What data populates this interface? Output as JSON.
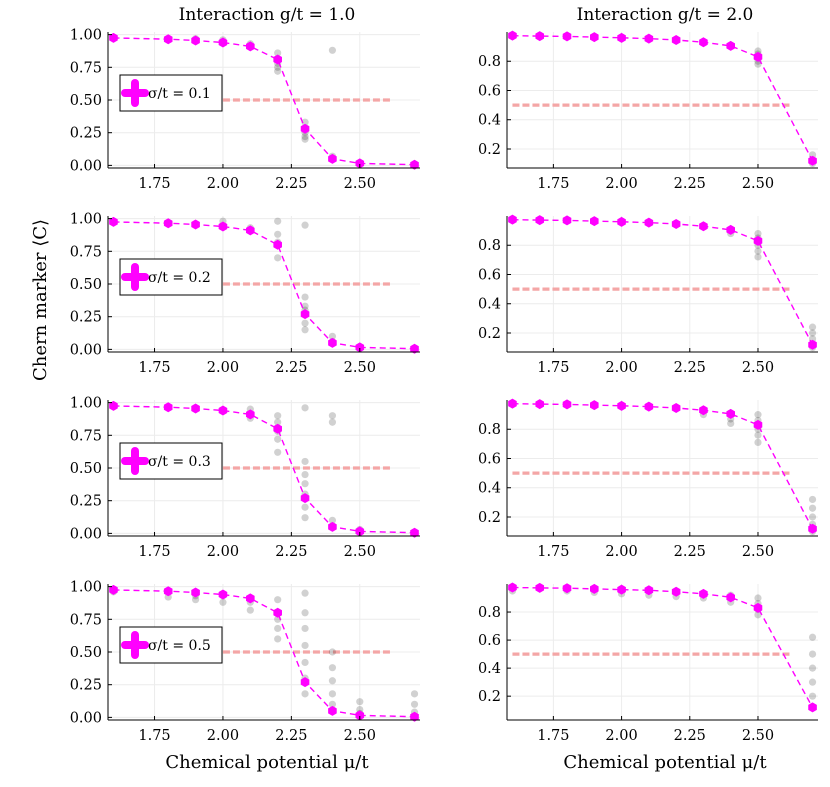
{
  "colors": {
    "mean": "#ff00ff",
    "threshold": "#f4a6a6",
    "samples": "#000000"
  },
  "column_titles": [
    "Interaction g/t = 1.0",
    "Interaction g/t = 2.0"
  ],
  "xlabel": "Chemical potential μ/t",
  "ylabel": "Chern marker ⟨C⟩",
  "chart_data": [
    {
      "type": "scatter",
      "row": 0,
      "col": 0,
      "title": "Interaction g/t = 1.0",
      "legend": "σ/t = 0.1",
      "legend_position": "left-center",
      "xlim": [
        1.58,
        2.72
      ],
      "ylim": [
        -0.02,
        1.02
      ],
      "xticks": [
        "1.75",
        "2.00",
        "2.25",
        "2.50"
      ],
      "xtick_values": [
        1.75,
        2.0,
        2.25,
        2.5
      ],
      "yticks": [
        "0.00",
        "0.25",
        "0.50",
        "0.75",
        "1.00"
      ],
      "ytick_values": [
        0,
        0.25,
        0.5,
        0.75,
        1
      ],
      "threshold": 0.5,
      "threshold_x": [
        2.0,
        2.62
      ],
      "series": [
        {
          "name": "mean",
          "x": [
            1.6,
            1.8,
            1.9,
            2.0,
            2.1,
            2.2,
            2.3,
            2.4,
            2.5,
            2.7
          ],
          "values": [
            0.975,
            0.965,
            0.955,
            0.94,
            0.91,
            0.81,
            0.28,
            0.05,
            0.015,
            0.005
          ]
        }
      ],
      "scatter_x": [
        1.9,
        2.0,
        2.1,
        2.2,
        2.2,
        2.2,
        2.2,
        2.3,
        2.3,
        2.3,
        2.3,
        2.4,
        2.4,
        2.5,
        2.7
      ],
      "scatter_y": [
        0.97,
        0.96,
        0.93,
        0.86,
        0.78,
        0.72,
        0.75,
        0.33,
        0.25,
        0.2,
        0.22,
        0.88,
        0.07,
        0.02,
        0.01
      ]
    },
    {
      "type": "scatter",
      "row": 0,
      "col": 1,
      "title": "Interaction g/t = 2.0",
      "xlim": [
        1.58,
        2.72
      ],
      "ylim": [
        0.07,
        1.0
      ],
      "xticks": [
        "1.75",
        "2.00",
        "2.25",
        "2.50"
      ],
      "xtick_values": [
        1.75,
        2.0,
        2.25,
        2.5
      ],
      "yticks": [
        "0.2",
        "0.4",
        "0.6",
        "0.8"
      ],
      "ytick_values": [
        0.2,
        0.4,
        0.6,
        0.8
      ],
      "threshold": 0.5,
      "threshold_x": [
        1.6,
        2.62
      ],
      "series": [
        {
          "name": "mean",
          "x": [
            1.6,
            1.7,
            1.8,
            1.9,
            2.0,
            2.1,
            2.2,
            2.3,
            2.4,
            2.5,
            2.7
          ],
          "values": [
            0.975,
            0.972,
            0.97,
            0.965,
            0.96,
            0.955,
            0.945,
            0.93,
            0.905,
            0.83,
            0.12
          ]
        }
      ],
      "scatter_x": [
        2.5,
        2.5,
        2.5,
        2.5,
        2.7,
        2.7
      ],
      "scatter_y": [
        0.87,
        0.85,
        0.8,
        0.78,
        0.16,
        0.1
      ]
    },
    {
      "type": "scatter",
      "row": 1,
      "col": 0,
      "legend": "σ/t = 0.2",
      "legend_position": "left-center",
      "xlim": [
        1.58,
        2.72
      ],
      "ylim": [
        -0.02,
        1.02
      ],
      "xticks": [
        "1.75",
        "2.00",
        "2.25",
        "2.50"
      ],
      "xtick_values": [
        1.75,
        2.0,
        2.25,
        2.5
      ],
      "yticks": [
        "0.00",
        "0.25",
        "0.50",
        "0.75",
        "1.00"
      ],
      "ytick_values": [
        0,
        0.25,
        0.5,
        0.75,
        1
      ],
      "threshold": 0.5,
      "threshold_x": [
        2.0,
        2.62
      ],
      "series": [
        {
          "name": "mean",
          "x": [
            1.6,
            1.8,
            1.9,
            2.0,
            2.1,
            2.2,
            2.3,
            2.4,
            2.5,
            2.7
          ],
          "values": [
            0.975,
            0.965,
            0.955,
            0.94,
            0.91,
            0.8,
            0.27,
            0.05,
            0.015,
            0.005
          ]
        }
      ],
      "scatter_x": [
        2.0,
        2.1,
        2.2,
        2.2,
        2.2,
        2.2,
        2.3,
        2.3,
        2.3,
        2.3,
        2.3,
        2.3,
        2.4,
        2.4,
        2.5
      ],
      "scatter_y": [
        0.98,
        0.93,
        0.98,
        0.88,
        0.82,
        0.7,
        0.95,
        0.4,
        0.33,
        0.3,
        0.2,
        0.15,
        0.1,
        0.06,
        0.02
      ]
    },
    {
      "type": "scatter",
      "row": 1,
      "col": 1,
      "xlim": [
        1.58,
        2.72
      ],
      "ylim": [
        0.07,
        1.0
      ],
      "xticks": [
        "1.75",
        "2.00",
        "2.25",
        "2.50"
      ],
      "xtick_values": [
        1.75,
        2.0,
        2.25,
        2.5
      ],
      "yticks": [
        "0.2",
        "0.4",
        "0.6",
        "0.8"
      ],
      "ytick_values": [
        0.2,
        0.4,
        0.6,
        0.8
      ],
      "threshold": 0.5,
      "threshold_x": [
        1.6,
        2.62
      ],
      "series": [
        {
          "name": "mean",
          "x": [
            1.6,
            1.7,
            1.8,
            1.9,
            2.0,
            2.1,
            2.2,
            2.3,
            2.4,
            2.5,
            2.7
          ],
          "values": [
            0.975,
            0.972,
            0.97,
            0.965,
            0.96,
            0.955,
            0.945,
            0.93,
            0.905,
            0.83,
            0.12
          ]
        }
      ],
      "scatter_x": [
        2.4,
        2.5,
        2.5,
        2.5,
        2.5,
        2.5,
        2.7,
        2.7,
        2.7,
        2.7
      ],
      "scatter_y": [
        0.88,
        0.88,
        0.85,
        0.8,
        0.76,
        0.72,
        0.24,
        0.2,
        0.16,
        0.1
      ]
    },
    {
      "type": "scatter",
      "row": 2,
      "col": 0,
      "legend": "σ/t = 0.3",
      "legend_position": "left-center",
      "xlim": [
        1.58,
        2.72
      ],
      "ylim": [
        -0.02,
        1.02
      ],
      "xticks": [
        "1.75",
        "2.00",
        "2.25",
        "2.50"
      ],
      "xtick_values": [
        1.75,
        2.0,
        2.25,
        2.5
      ],
      "yticks": [
        "0.00",
        "0.25",
        "0.50",
        "0.75",
        "1.00"
      ],
      "ytick_values": [
        0,
        0.25,
        0.5,
        0.75,
        1
      ],
      "threshold": 0.5,
      "threshold_x": [
        2.0,
        2.62
      ],
      "series": [
        {
          "name": "mean",
          "x": [
            1.6,
            1.8,
            1.9,
            2.0,
            2.1,
            2.2,
            2.3,
            2.4,
            2.5,
            2.7
          ],
          "values": [
            0.975,
            0.965,
            0.955,
            0.94,
            0.91,
            0.8,
            0.27,
            0.05,
            0.015,
            0.005
          ]
        }
      ],
      "scatter_x": [
        2.1,
        2.1,
        2.2,
        2.2,
        2.2,
        2.2,
        2.2,
        2.3,
        2.3,
        2.3,
        2.3,
        2.3,
        2.3,
        2.3,
        2.4,
        2.4,
        2.4,
        2.5
      ],
      "scatter_y": [
        0.95,
        0.88,
        0.9,
        0.85,
        0.78,
        0.72,
        0.62,
        0.96,
        0.55,
        0.45,
        0.38,
        0.3,
        0.2,
        0.12,
        0.9,
        0.85,
        0.1,
        0.03
      ]
    },
    {
      "type": "scatter",
      "row": 2,
      "col": 1,
      "xlim": [
        1.58,
        2.72
      ],
      "ylim": [
        0.07,
        1.0
      ],
      "xticks": [
        "1.75",
        "2.00",
        "2.25",
        "2.50"
      ],
      "xtick_values": [
        1.75,
        2.0,
        2.25,
        2.5
      ],
      "yticks": [
        "0.2",
        "0.4",
        "0.6",
        "0.8"
      ],
      "ytick_values": [
        0.2,
        0.4,
        0.6,
        0.8
      ],
      "threshold": 0.5,
      "threshold_x": [
        1.6,
        2.62
      ],
      "series": [
        {
          "name": "mean",
          "x": [
            1.6,
            1.7,
            1.8,
            1.9,
            2.0,
            2.1,
            2.2,
            2.3,
            2.4,
            2.5,
            2.7
          ],
          "values": [
            0.975,
            0.972,
            0.97,
            0.965,
            0.96,
            0.955,
            0.945,
            0.93,
            0.905,
            0.83,
            0.12
          ]
        }
      ],
      "scatter_x": [
        2.3,
        2.4,
        2.4,
        2.5,
        2.5,
        2.5,
        2.5,
        2.5,
        2.7,
        2.7,
        2.7,
        2.7,
        2.7
      ],
      "scatter_y": [
        0.9,
        0.87,
        0.84,
        0.9,
        0.86,
        0.8,
        0.76,
        0.71,
        0.32,
        0.26,
        0.2,
        0.15,
        0.1
      ]
    },
    {
      "type": "scatter",
      "row": 3,
      "col": 0,
      "legend": "σ/t = 0.5",
      "legend_position": "left-center",
      "xlim": [
        1.58,
        2.72
      ],
      "ylim": [
        -0.02,
        1.02
      ],
      "xticks": [
        "1.75",
        "2.00",
        "2.25",
        "2.50"
      ],
      "xtick_values": [
        1.75,
        2.0,
        2.25,
        2.5
      ],
      "yticks": [
        "0.00",
        "0.25",
        "0.50",
        "0.75",
        "1.00"
      ],
      "ytick_values": [
        0,
        0.25,
        0.5,
        0.75,
        1
      ],
      "threshold": 0.5,
      "threshold_x": [
        2.0,
        2.62
      ],
      "series": [
        {
          "name": "mean",
          "x": [
            1.6,
            1.8,
            1.9,
            2.0,
            2.1,
            2.2,
            2.3,
            2.4,
            2.5,
            2.7
          ],
          "values": [
            0.975,
            0.965,
            0.955,
            0.94,
            0.91,
            0.8,
            0.27,
            0.05,
            0.015,
            0.005
          ]
        }
      ],
      "scatter_x": [
        1.6,
        1.8,
        1.8,
        1.9,
        1.9,
        2.0,
        2.0,
        2.1,
        2.1,
        2.2,
        2.2,
        2.2,
        2.2,
        2.2,
        2.3,
        2.3,
        2.3,
        2.3,
        2.3,
        2.3,
        2.3,
        2.4,
        2.4,
        2.4,
        2.4,
        2.4,
        2.5,
        2.5,
        2.5,
        2.7,
        2.7,
        2.7
      ],
      "scatter_y": [
        0.96,
        0.96,
        0.92,
        0.93,
        0.9,
        0.93,
        0.88,
        0.88,
        0.82,
        0.9,
        0.8,
        0.75,
        0.68,
        0.6,
        0.95,
        0.8,
        0.68,
        0.55,
        0.42,
        0.3,
        0.18,
        0.5,
        0.38,
        0.28,
        0.18,
        0.1,
        0.12,
        0.06,
        0.03,
        0.18,
        0.1,
        0.04
      ]
    },
    {
      "type": "scatter",
      "row": 3,
      "col": 1,
      "xlim": [
        1.58,
        2.72
      ],
      "ylim": [
        0.03,
        1.0
      ],
      "xticks": [
        "1.75",
        "2.00",
        "2.25",
        "2.50"
      ],
      "xtick_values": [
        1.75,
        2.0,
        2.25,
        2.5
      ],
      "yticks": [
        "0.2",
        "0.4",
        "0.6",
        "0.8"
      ],
      "ytick_values": [
        0.2,
        0.4,
        0.6,
        0.8
      ],
      "threshold": 0.5,
      "threshold_x": [
        1.6,
        2.62
      ],
      "series": [
        {
          "name": "mean",
          "x": [
            1.6,
            1.7,
            1.8,
            1.9,
            2.0,
            2.1,
            2.2,
            2.3,
            2.4,
            2.5,
            2.7
          ],
          "values": [
            0.975,
            0.972,
            0.97,
            0.965,
            0.96,
            0.955,
            0.945,
            0.93,
            0.905,
            0.83,
            0.12
          ]
        }
      ],
      "scatter_x": [
        1.6,
        1.8,
        1.9,
        2.0,
        2.0,
        2.1,
        2.1,
        2.2,
        2.2,
        2.3,
        2.3,
        2.4,
        2.4,
        2.5,
        2.5,
        2.5,
        2.5,
        2.7,
        2.7,
        2.7,
        2.7,
        2.7,
        2.7
      ],
      "scatter_y": [
        0.95,
        0.95,
        0.94,
        0.96,
        0.93,
        0.95,
        0.92,
        0.94,
        0.91,
        0.93,
        0.9,
        0.92,
        0.87,
        0.9,
        0.86,
        0.82,
        0.78,
        0.62,
        0.5,
        0.4,
        0.3,
        0.2,
        0.12
      ]
    }
  ]
}
